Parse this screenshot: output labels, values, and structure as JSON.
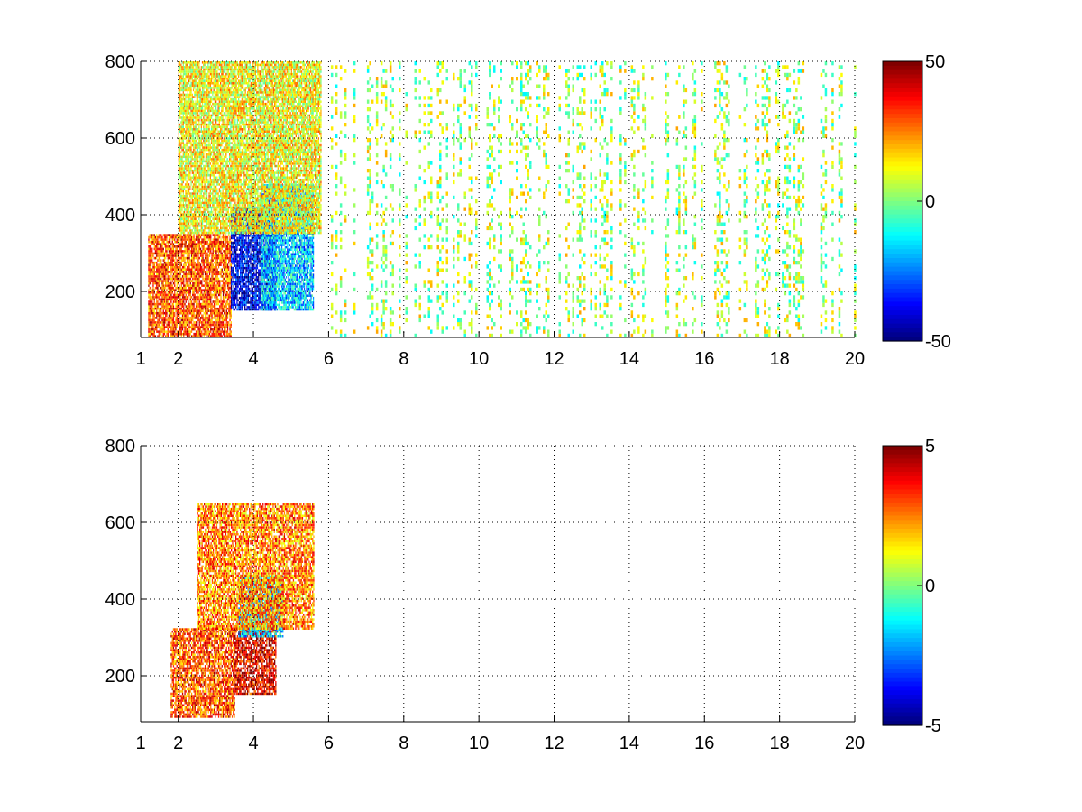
{
  "chart_data": [
    {
      "type": "heatmap",
      "title": "",
      "xlabel": "",
      "ylabel": "",
      "xlim": [
        1,
        20
      ],
      "ylim": [
        80,
        800
      ],
      "x_ticks": [
        1,
        2,
        4,
        6,
        8,
        10,
        12,
        14,
        16,
        18,
        20
      ],
      "x_tick_labels": [
        "1",
        "2",
        "4",
        "6",
        "8",
        "10",
        "12",
        "14",
        "16",
        "18",
        "20"
      ],
      "y_ticks": [
        200,
        400,
        600,
        800
      ],
      "y_tick_labels": [
        "200",
        "400",
        "600",
        "800"
      ],
      "grid": true,
      "colormap": "jet",
      "clim": [
        -50,
        50
      ],
      "colorbar_ticks": [
        50,
        0,
        -50
      ],
      "colorbar_tick_labels": [
        "50",
        "0",
        "-50"
      ],
      "regions": [
        {
          "x": [
            1.2,
            3.4
          ],
          "y": [
            80,
            350
          ],
          "value": 30
        },
        {
          "x": [
            3.4,
            4.6
          ],
          "y": [
            150,
            420
          ],
          "value": -40
        },
        {
          "x": [
            4.2,
            5.6
          ],
          "y": [
            150,
            480
          ],
          "value": -18
        },
        {
          "x": [
            2.0,
            5.8
          ],
          "y": [
            350,
            800
          ],
          "value": 12
        },
        {
          "x": [
            6.0,
            20.0
          ],
          "y": [
            80,
            800
          ],
          "value": 4
        }
      ]
    },
    {
      "type": "heatmap",
      "title": "",
      "xlabel": "",
      "ylabel": "",
      "xlim": [
        1,
        20
      ],
      "ylim": [
        80,
        800
      ],
      "x_ticks": [
        1,
        2,
        4,
        6,
        8,
        10,
        12,
        14,
        16,
        18,
        20
      ],
      "x_tick_labels": [
        "1",
        "2",
        "4",
        "6",
        "8",
        "10",
        "12",
        "14",
        "16",
        "18",
        "20"
      ],
      "y_ticks": [
        200,
        400,
        600,
        800
      ],
      "y_tick_labels": [
        "200",
        "400",
        "600",
        "800"
      ],
      "grid": true,
      "colormap": "jet",
      "clim": [
        -5,
        5
      ],
      "colorbar_ticks": [
        5,
        0,
        -5
      ],
      "colorbar_tick_labels": [
        "5",
        "0",
        "-5"
      ],
      "regions": [
        {
          "x": [
            1.8,
            3.5
          ],
          "y": [
            90,
            320
          ],
          "value": 3
        },
        {
          "x": [
            3.5,
            4.6
          ],
          "y": [
            150,
            330
          ],
          "value": 4
        },
        {
          "x": [
            3.6,
            4.8
          ],
          "y": [
            300,
            460
          ],
          "value": -1.5
        },
        {
          "x": [
            2.5,
            5.6
          ],
          "y": [
            320,
            650
          ],
          "value": 2.5
        }
      ]
    }
  ]
}
